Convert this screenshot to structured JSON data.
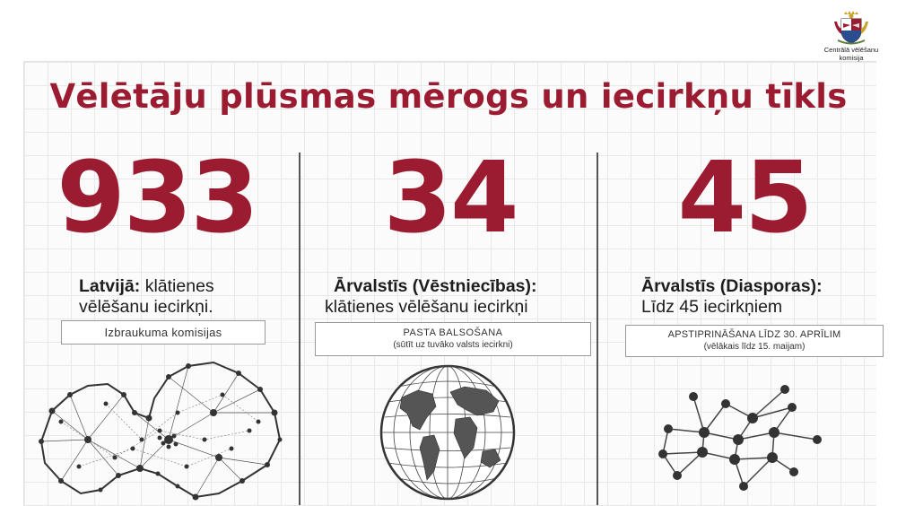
{
  "header": {
    "logo_text_line1": "Centrālā vēlēšanu",
    "logo_text_line2": "komisija",
    "title": "Vēlētāju plūsmas mērogs un iecirkņu tīkls"
  },
  "columns": [
    {
      "number": "933",
      "heading_bold": "Latvijā:",
      "heading_rest": " klātienes",
      "heading_line2": "vēlēšanu iecirkņi.",
      "box_line1": "Izbraukuma komisijas",
      "illustration": "latvia-network-map-icon"
    },
    {
      "number": "34",
      "heading_bold": "Ārvalstīs (Vēstniecības):",
      "heading_line2": "klātienes vēlēšanu iecirkņi",
      "box_line1": "PASTA BALSOŠANA",
      "box_line2": "(sūtīt uz tuvāko valsts iecirkni)",
      "illustration": "globe-icon"
    },
    {
      "number": "45",
      "heading_bold": "Ārvalstīs (Diasporas):",
      "heading_line2": "Līdz 45 iecirkņiem",
      "box_line1": "APSTIPRINĀŠANA LĪDZ 30. APRĪLIM",
      "box_line2": "(vēlākais līdz 15. maijam)",
      "illustration": "network-graph-icon"
    }
  ],
  "colors": {
    "accent": "#9b1c31",
    "text": "#1d1d1d",
    "divider": "#555555"
  }
}
